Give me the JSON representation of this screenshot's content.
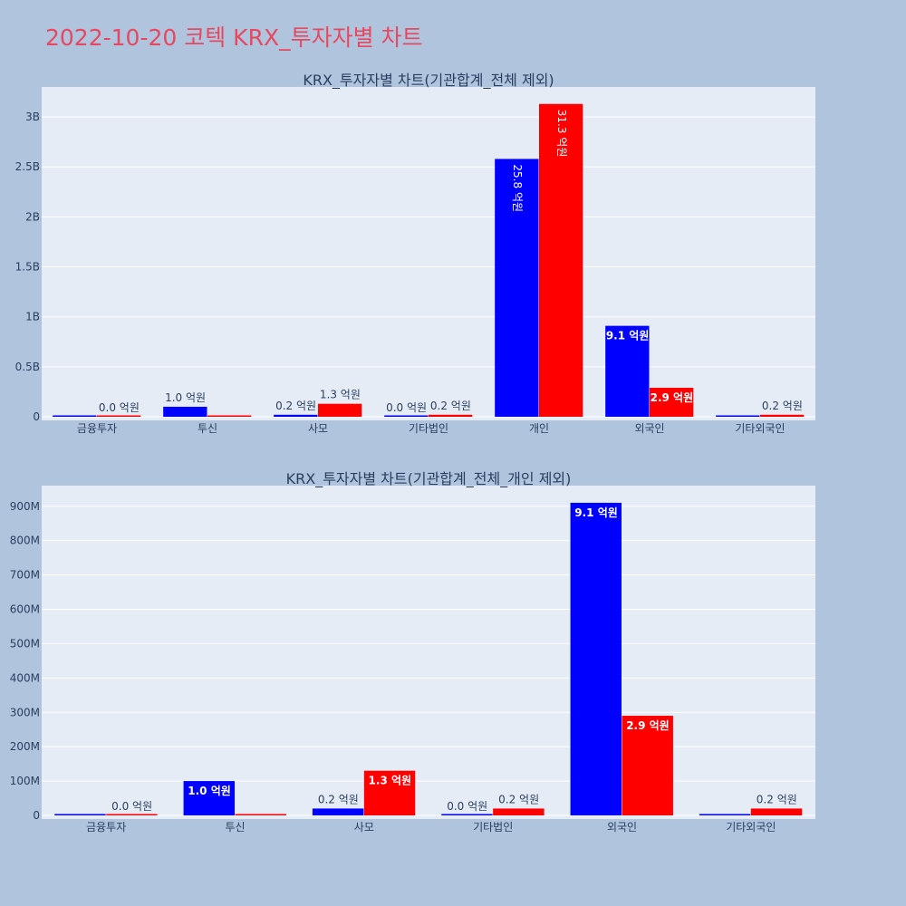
{
  "title": "2022-10-20 코텍 KRX_투자자별 차트",
  "colors": {
    "background": "#b0c4de",
    "plot_bg": "#e5ecf6",
    "grid": "#ffffff",
    "title": "#e8485f",
    "text": "#2a3f5f",
    "series_a": "#0000ff",
    "series_b": "#ff0000"
  },
  "chart_data": [
    {
      "type": "bar",
      "title": "KRX_투자자별 차트(기관합계_전체 제외)",
      "categories": [
        "금융투자",
        "투신",
        "사모",
        "기타법인",
        "개인",
        "외국인",
        "기타외국인"
      ],
      "series": [
        {
          "color": "#0000ff",
          "values": [
            0,
            100000000,
            20000000,
            0,
            2580000000,
            910000000,
            0
          ],
          "labels": [
            "",
            "1.0 억원",
            "0.2 억원",
            "0.0 억원",
            "25.8 억원",
            "9.1 억원",
            ""
          ]
        },
        {
          "color": "#ff0000",
          "values": [
            0,
            0,
            130000000,
            20000000,
            3130000000,
            290000000,
            20000000
          ],
          "labels": [
            "0.0 억원",
            "",
            "1.3 억원",
            "0.2 억원",
            "31.3 억원",
            "2.9 억원",
            "0.2 억원"
          ]
        }
      ],
      "ylim": [
        0,
        3300000000
      ],
      "yticks": [
        0,
        500000000,
        1000000000,
        1500000000,
        2000000000,
        2500000000,
        3000000000
      ],
      "ytick_labels": [
        "0",
        "0.5B",
        "1B",
        "1.5B",
        "2B",
        "2.5B",
        "3B"
      ],
      "grid": true
    },
    {
      "type": "bar",
      "title": "KRX_투자자별 차트(기관합계_전체_개인 제외)",
      "categories": [
        "금융투자",
        "투신",
        "사모",
        "기타법인",
        "외국인",
        "기타외국인"
      ],
      "series": [
        {
          "color": "#0000ff",
          "values": [
            0,
            100000000,
            20000000,
            0,
            910000000,
            0
          ],
          "labels": [
            "",
            "1.0 억원",
            "0.2 억원",
            "0.0 억원",
            "9.1 억원",
            ""
          ]
        },
        {
          "color": "#ff0000",
          "values": [
            0,
            0,
            130000000,
            20000000,
            290000000,
            20000000
          ],
          "labels": [
            "0.0 억원",
            "",
            "1.3 억원",
            "0.2 억원",
            "2.9 억원",
            "0.2 억원"
          ]
        }
      ],
      "ylim": [
        0,
        960000000
      ],
      "yticks": [
        0,
        100000000,
        200000000,
        300000000,
        400000000,
        500000000,
        600000000,
        700000000,
        800000000,
        900000000
      ],
      "ytick_labels": [
        "0",
        "100M",
        "200M",
        "300M",
        "400M",
        "500M",
        "600M",
        "700M",
        "800M",
        "900M"
      ],
      "grid": true
    }
  ]
}
